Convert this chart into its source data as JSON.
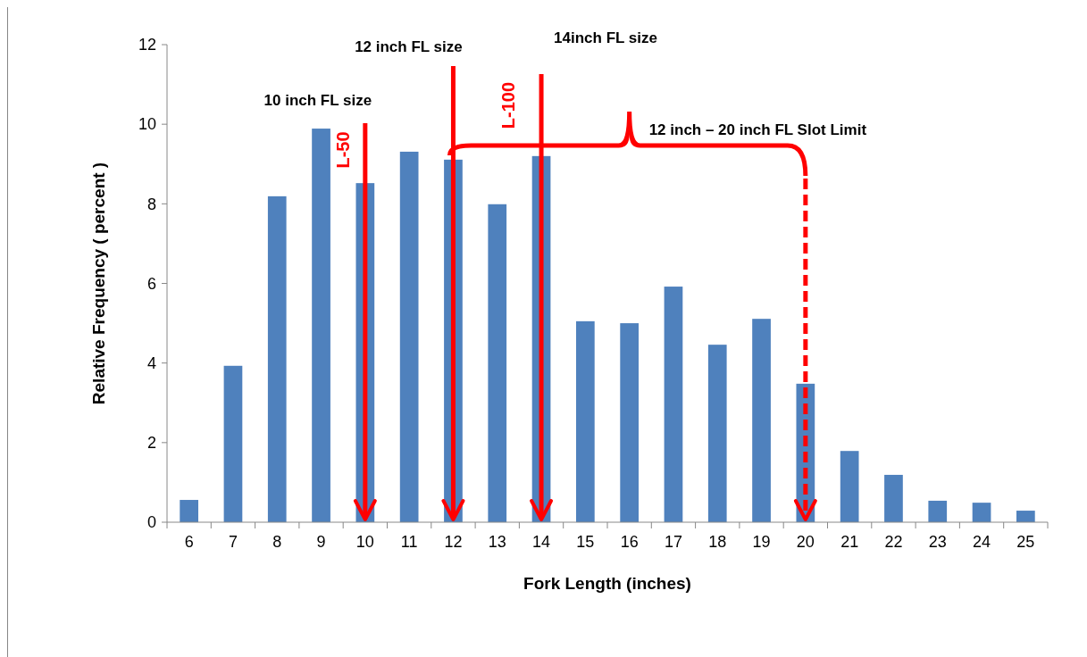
{
  "chart_data": {
    "type": "bar",
    "xlabel": "Fork Length (inches)",
    "ylabel": "Relative Frequency ( percent )",
    "categories": [
      "6",
      "7",
      "8",
      "9",
      "10",
      "11",
      "12",
      "13",
      "14",
      "15",
      "16",
      "17",
      "18",
      "19",
      "20",
      "21",
      "22",
      "23",
      "24",
      "25"
    ],
    "values": [
      0.56,
      3.93,
      8.19,
      9.89,
      8.52,
      9.31,
      9.11,
      7.99,
      9.2,
      5.05,
      5.0,
      5.92,
      4.46,
      5.11,
      3.48,
      1.79,
      1.19,
      0.54,
      0.49,
      0.29
    ],
    "color": "#4f81bd",
    "ylim": [
      0,
      12
    ],
    "yticks": [
      0,
      2,
      4,
      6,
      8,
      10,
      12
    ],
    "ref_lines": [
      {
        "axis": "x",
        "value": "10",
        "label": "10 inch FL size",
        "color": "#ff0000",
        "line_style": "solid"
      },
      {
        "axis": "x",
        "value": "12",
        "label": "12 inch FL size",
        "color": "#ff0000",
        "line_style": "solid"
      },
      {
        "axis": "x",
        "value": "14",
        "label": "14inch  FL size",
        "color": "#ff0000",
        "line_style": "solid"
      },
      {
        "axis": "x",
        "value": "20",
        "color": "#ff0000",
        "line_style": "dashed"
      }
    ],
    "annotations": [
      "L-50",
      "L-100",
      "12 inch – 20 inch FL Slot Limit"
    ]
  }
}
